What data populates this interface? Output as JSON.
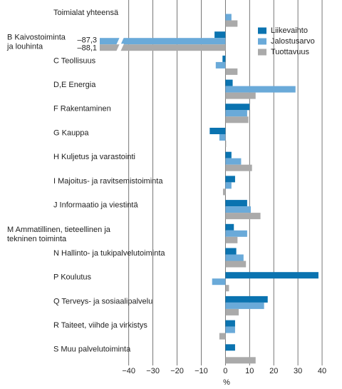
{
  "chart_data": {
    "type": "bar",
    "orientation": "horizontal",
    "categories": [
      "Toimialat yhteensä",
      [
        "B Kaivostoiminta",
        "ja louhinta"
      ],
      "C Teollisuus",
      "D,E Energia",
      "F Rakentaminen",
      "G Kauppa",
      "H Kuljetus ja varastointi",
      "I Majoitus- ja ravitsemistoiminta",
      "J Informaatio ja viestintä",
      [
        "M Ammatillinen, tieteellinen ja",
        "tekninen toiminta"
      ],
      "N Hallinto- ja tukipalvelutoiminta",
      "P Koulutus",
      "Q Terveys- ja sosiaalipalvelu",
      "R Taiteet, viihde ja virkistys",
      "S Muu palvelutoiminta"
    ],
    "series": [
      {
        "name": "Liikevaihto",
        "color": "#0a73b0",
        "values": [
          0,
          -4.5,
          -1.2,
          3,
          10,
          -6.5,
          2.5,
          4,
          9,
          3.5,
          4.5,
          38.5,
          17.5,
          4,
          4
        ]
      },
      {
        "name": "Jalostusarvo",
        "color": "#6aaad9",
        "values": [
          2.5,
          -87.3,
          -4,
          29,
          9,
          -2.5,
          6.5,
          2.5,
          10.5,
          9,
          7.5,
          -5.5,
          16,
          4,
          0
        ],
        "value_labels": [
          null,
          "–87,3",
          null,
          null,
          null,
          null,
          null,
          null,
          null,
          null,
          null,
          null,
          null,
          null,
          null
        ]
      },
      {
        "name": "Tuottavuus",
        "color": "#aaaaaa",
        "values": [
          5,
          -88.1,
          5,
          12.5,
          9.5,
          0.3,
          11,
          -1,
          14.5,
          5,
          8.5,
          1.5,
          5.5,
          -2.5,
          12.5
        ],
        "value_labels": [
          null,
          "–88,1",
          null,
          null,
          null,
          null,
          null,
          null,
          null,
          null,
          null,
          null,
          null,
          null,
          null
        ]
      }
    ],
    "xlabel": "%",
    "xlim": [
      -52,
      45
    ],
    "xticks": [
      {
        "value": -40,
        "label": "−40"
      },
      {
        "value": -30,
        "label": "−30"
      },
      {
        "value": -20,
        "label": "−20"
      },
      {
        "value": -10,
        "label": "−10"
      },
      0,
      10,
      20,
      30,
      40
    ],
    "grid": true,
    "legend": "upper right"
  }
}
